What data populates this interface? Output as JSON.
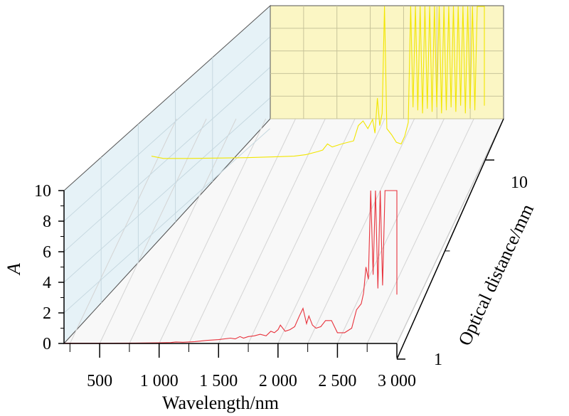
{
  "chart_data": {
    "type": "line",
    "title": "",
    "xlabel": "Wavelength/nm",
    "ylabel": "A",
    "zlabel": "Optical distance/mm",
    "x_ticks": [
      "500",
      "1 000",
      "1 500",
      "2 000",
      "2 500",
      "3 000"
    ],
    "y_ticks": [
      "0",
      "2",
      "4",
      "6",
      "8",
      "10"
    ],
    "z_ticks": [
      "1",
      "10"
    ],
    "xlim": [
      200,
      3000
    ],
    "ylim": [
      0,
      10
    ],
    "grid": true,
    "series": [
      {
        "optical_distance": "1",
        "color": "#e8323c",
        "points": [
          [
            200,
            0.02
          ],
          [
            400,
            0.02
          ],
          [
            600,
            0.02
          ],
          [
            800,
            0.03
          ],
          [
            1000,
            0.04
          ],
          [
            1100,
            0.06
          ],
          [
            1140,
            0.1
          ],
          [
            1200,
            0.08
          ],
          [
            1300,
            0.12
          ],
          [
            1400,
            0.2
          ],
          [
            1500,
            0.25
          ],
          [
            1600,
            0.35
          ],
          [
            1640,
            0.3
          ],
          [
            1680,
            0.45
          ],
          [
            1710,
            0.35
          ],
          [
            1750,
            0.45
          ],
          [
            1800,
            0.5
          ],
          [
            1850,
            0.6
          ],
          [
            1900,
            0.5
          ],
          [
            1940,
            0.8
          ],
          [
            1970,
            0.7
          ],
          [
            2000,
            0.9
          ],
          [
            2020,
            1.2
          ],
          [
            2060,
            0.8
          ],
          [
            2100,
            0.9
          ],
          [
            2140,
            1.1
          ],
          [
            2180,
            1.8
          ],
          [
            2210,
            2.3
          ],
          [
            2240,
            1.3
          ],
          [
            2260,
            1.8
          ],
          [
            2290,
            1.2
          ],
          [
            2320,
            1.0
          ],
          [
            2360,
            1.1
          ],
          [
            2400,
            1.5
          ],
          [
            2450,
            1.5
          ],
          [
            2500,
            0.7
          ],
          [
            2560,
            0.7
          ],
          [
            2620,
            1.0
          ],
          [
            2660,
            2.2
          ],
          [
            2700,
            2.6
          ],
          [
            2720,
            3.3
          ],
          [
            2740,
            5.0
          ],
          [
            2760,
            4.2
          ],
          [
            2780,
            10
          ],
          [
            2800,
            4.5
          ],
          [
            2820,
            10
          ],
          [
            2840,
            3.6
          ],
          [
            2860,
            10
          ],
          [
            2880,
            3.8
          ],
          [
            2900,
            10
          ],
          [
            2920,
            10
          ],
          [
            2940,
            10
          ],
          [
            2960,
            10
          ],
          [
            3000,
            10
          ],
          [
            3000,
            3.2
          ]
        ]
      },
      {
        "optical_distance": "10",
        "color": "#f2e600",
        "points": [
          [
            200,
            0.2
          ],
          [
            300,
            0.05
          ],
          [
            500,
            0.05
          ],
          [
            800,
            0.08
          ],
          [
            1000,
            0.1
          ],
          [
            1200,
            0.15
          ],
          [
            1400,
            0.2
          ],
          [
            1500,
            0.3
          ],
          [
            1600,
            0.5
          ],
          [
            1640,
            0.6
          ],
          [
            1680,
            1.0
          ],
          [
            1720,
            0.8
          ],
          [
            1800,
            1.0
          ],
          [
            1900,
            1.2
          ],
          [
            1940,
            2.2
          ],
          [
            1980,
            2.5
          ],
          [
            2020,
            2.0
          ],
          [
            2060,
            2.6
          ],
          [
            2080,
            1.7
          ],
          [
            2100,
            4.0
          ],
          [
            2120,
            2.2
          ],
          [
            2140,
            3.0
          ],
          [
            2160,
            10
          ],
          [
            2180,
            2.0
          ],
          [
            2220,
            1.6
          ],
          [
            2260,
            1.1
          ],
          [
            2300,
            1.0
          ],
          [
            2330,
            1.5
          ],
          [
            2360,
            2.4
          ],
          [
            2380,
            10
          ],
          [
            2400,
            3.4
          ],
          [
            2420,
            10
          ],
          [
            2440,
            3.2
          ],
          [
            2460,
            10
          ],
          [
            2480,
            3.0
          ],
          [
            2500,
            10
          ],
          [
            2520,
            3.3
          ],
          [
            2540,
            10
          ],
          [
            2560,
            3.1
          ],
          [
            2580,
            10
          ],
          [
            2600,
            3.4
          ],
          [
            2620,
            10
          ],
          [
            2640,
            3.0
          ],
          [
            2660,
            10
          ],
          [
            2680,
            3.2
          ],
          [
            2700,
            10
          ],
          [
            2720,
            3.4
          ],
          [
            2740,
            10
          ],
          [
            2760,
            3.1
          ],
          [
            2780,
            10
          ],
          [
            2800,
            3.5
          ],
          [
            2820,
            10
          ],
          [
            2840,
            3.0
          ],
          [
            2860,
            10
          ],
          [
            2880,
            3.3
          ],
          [
            2900,
            10
          ],
          [
            2920,
            3.2
          ],
          [
            2940,
            10
          ],
          [
            2960,
            10
          ],
          [
            3000,
            10
          ],
          [
            3000,
            3.5
          ]
        ]
      }
    ]
  }
}
